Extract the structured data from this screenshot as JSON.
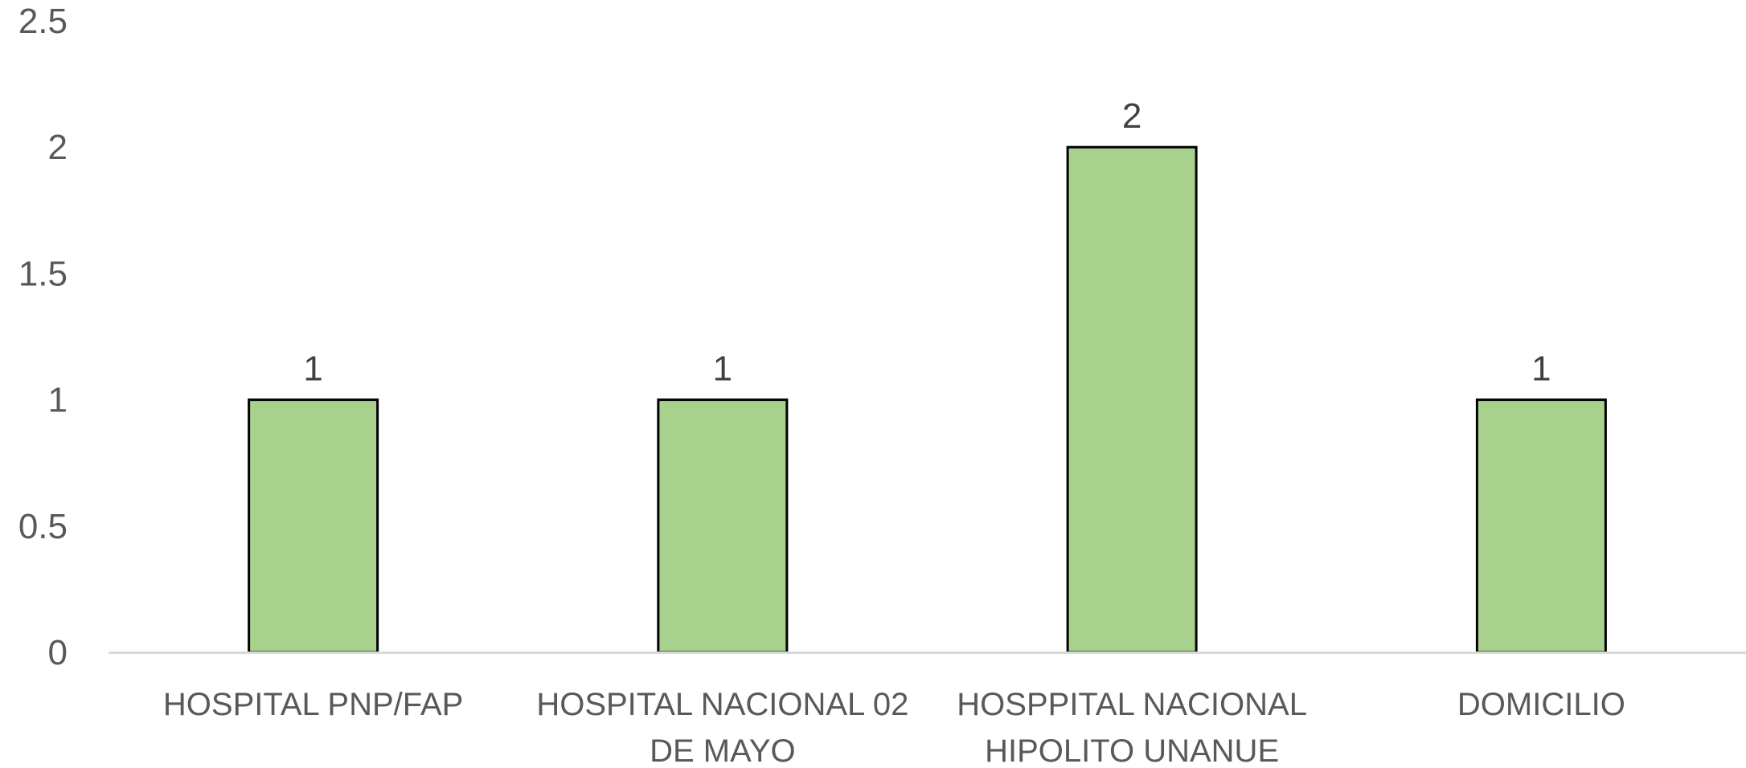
{
  "chart_data": {
    "type": "bar",
    "categories": [
      [
        "HOSPITAL PNP/FAP"
      ],
      [
        "HOSPITAL NACIONAL 02",
        "DE MAYO"
      ],
      [
        "HOSPPITAL NACIONAL",
        "HIPOLITO UNANUE"
      ],
      [
        "DOMICILIO"
      ]
    ],
    "values": [
      1,
      1,
      2,
      1
    ],
    "data_labels": [
      "1",
      "1",
      "2",
      "1"
    ],
    "y_ticks": [
      "0",
      "0.5",
      "1",
      "1.5",
      "2",
      "2.5"
    ],
    "ylim": [
      0,
      2.5
    ],
    "title": "",
    "xlabel": "",
    "ylabel": "",
    "grid": false,
    "legend": "none",
    "colors": {
      "bar_fill": "#a9d18e",
      "bar_stroke": "#000000",
      "axis_line": "#d9d9d9",
      "tick_text": "#595959",
      "data_label_text": "#404040"
    }
  }
}
